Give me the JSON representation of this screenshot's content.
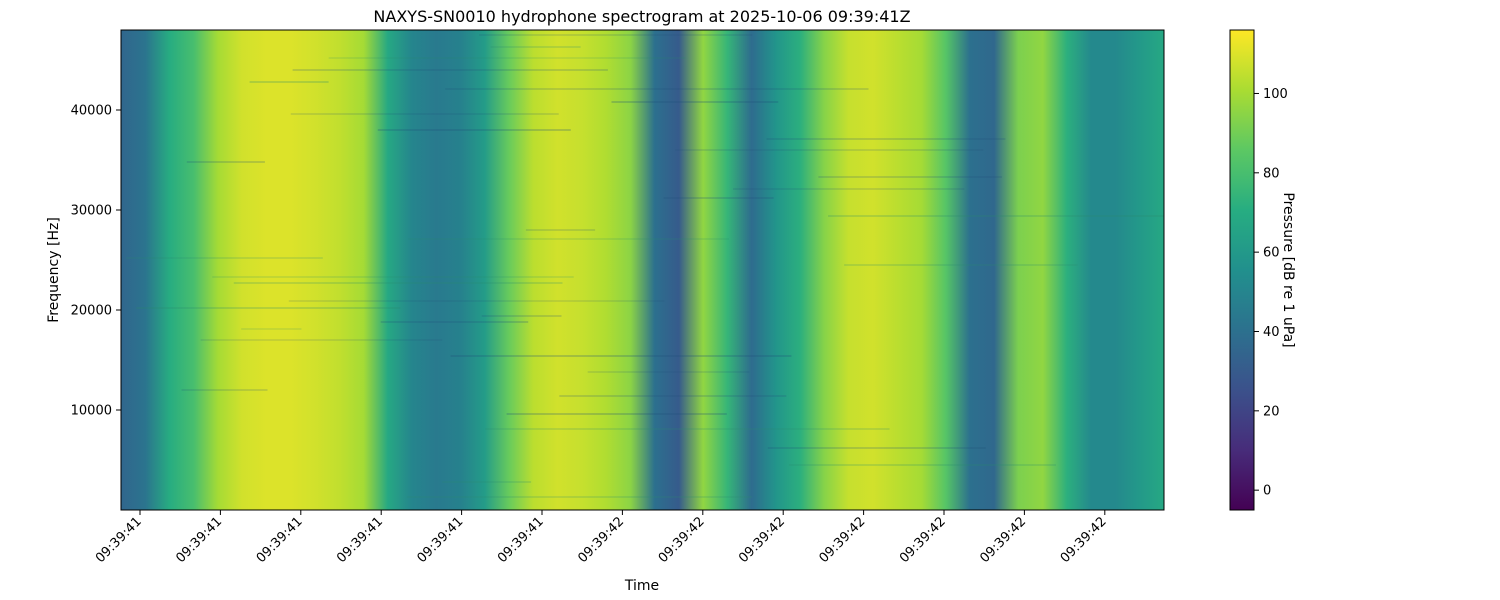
{
  "chart_data": {
    "type": "heatmap",
    "title": "NAXYS-SN0010 hydrophone spectrogram at 2025-10-06 09:39:41Z",
    "xlabel": "Time",
    "ylabel": "Frequency [Hz]",
    "colorbar_label": "Pressure [dB re 1 uPa]",
    "colormap": "viridis",
    "x_tick_labels": [
      "09:39:41",
      "09:39:41",
      "09:39:41",
      "09:39:41",
      "09:39:41",
      "09:39:41",
      "09:39:42",
      "09:39:42",
      "09:39:42",
      "09:39:42",
      "09:39:42",
      "09:39:42",
      "09:39:42"
    ],
    "y_ticks": [
      10000,
      20000,
      30000,
      40000
    ],
    "ylim": [
      0,
      48000
    ],
    "colorbar_ticks": [
      0,
      20,
      40,
      60,
      80,
      100
    ],
    "clim": [
      -5,
      116
    ],
    "column_levels_db": [
      35,
      42,
      70,
      80,
      100,
      108,
      110,
      110,
      108,
      105,
      100,
      68,
      50,
      45,
      48,
      62,
      88,
      104,
      108,
      106,
      102,
      95,
      40,
      30,
      96,
      75,
      38,
      58,
      72,
      94,
      106,
      108,
      104,
      100,
      84,
      40,
      36,
      92,
      96,
      72,
      52,
      52,
      60,
      68
    ]
  }
}
